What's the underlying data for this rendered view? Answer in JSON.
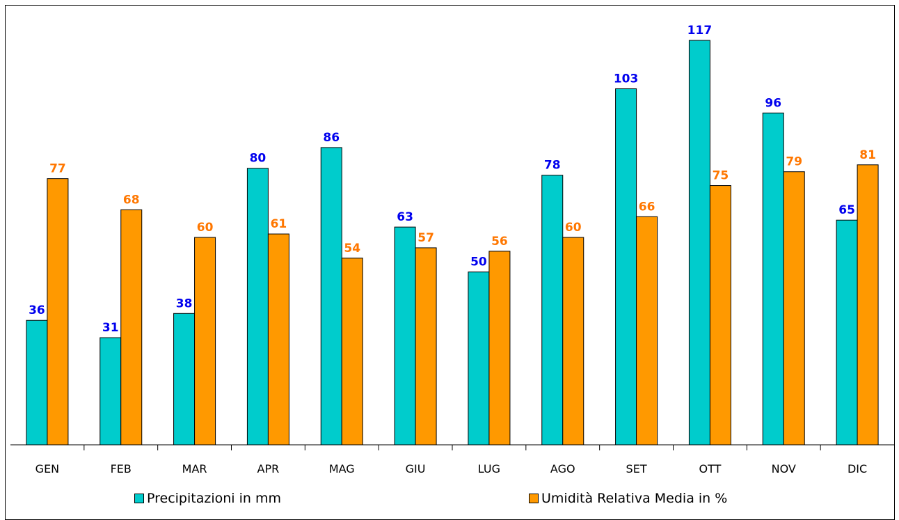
{
  "chart_data": {
    "type": "bar",
    "categories": [
      "GEN",
      "FEB",
      "MAR",
      "APR",
      "MAG",
      "GIU",
      "LUG",
      "AGO",
      "SET",
      "OTT",
      "NOV",
      "DIC"
    ],
    "series": [
      {
        "name": "Precipitazioni in mm",
        "values": [
          36,
          31,
          38,
          80,
          86,
          63,
          50,
          78,
          103,
          117,
          96,
          65
        ],
        "color": "#00cccc",
        "label_color": "#0000ee"
      },
      {
        "name": "Umidità Relativa Media in %",
        "values": [
          77,
          68,
          60,
          61,
          54,
          57,
          56,
          60,
          66,
          75,
          79,
          81
        ],
        "color": "#ff9900",
        "label_color": "#ff7700"
      }
    ],
    "ylim": [
      0,
      120
    ],
    "grid": false,
    "legend_position": "bottom",
    "title": "",
    "xlabel": "",
    "ylabel": ""
  }
}
